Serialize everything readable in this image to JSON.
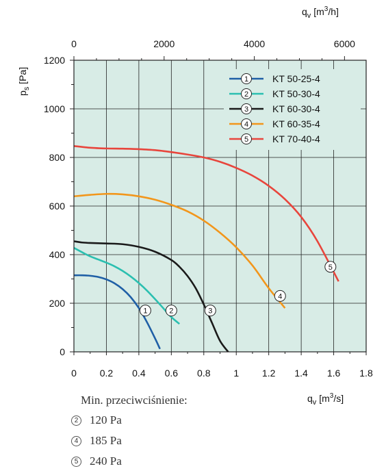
{
  "chart_data": {
    "type": "line",
    "xlabel_bottom": {
      "sym": "q",
      "sub": "v",
      "unit_pre": "[m",
      "sup": "3",
      "unit_post": "/s]"
    },
    "xlabel_top": {
      "sym": "q",
      "sub": "v",
      "unit_pre": "[m",
      "sup": "3",
      "unit_post": "/h]"
    },
    "ylabel": {
      "sym": "p",
      "sub": "s",
      "unit": "[Pa]"
    },
    "xlim": [
      0,
      1.8
    ],
    "ylim": [
      0,
      1200
    ],
    "x_ticks": [
      "0",
      "0.2",
      "0.4",
      "0.6",
      "0.8",
      "1",
      "1.2",
      "1.4",
      "1.6",
      "1.8"
    ],
    "y_ticks": [
      "0",
      "200",
      "400",
      "600",
      "800",
      "1000",
      "1200"
    ],
    "x2_ticks": [
      "0",
      "2000",
      "4000",
      "6000"
    ],
    "background": "#d8ece6",
    "legend_position": "top-right",
    "series": [
      {
        "marker": "1",
        "name": "KT 50-25-4",
        "color": "#1f5fa6",
        "x": [
          0,
          0.05,
          0.1,
          0.15,
          0.2,
          0.25,
          0.3,
          0.35,
          0.4,
          0.45,
          0.5,
          0.53
        ],
        "y": [
          315,
          315,
          313,
          308,
          298,
          282,
          258,
          225,
          180,
          122,
          55,
          12
        ],
        "marker_at": [
          0.44,
          170
        ]
      },
      {
        "marker": "2",
        "name": "KT 50-30-4",
        "color": "#2bbfb0",
        "x": [
          0,
          0.05,
          0.1,
          0.15,
          0.2,
          0.25,
          0.3,
          0.35,
          0.4,
          0.45,
          0.5,
          0.55,
          0.6,
          0.65
        ],
        "y": [
          428,
          410,
          393,
          380,
          367,
          352,
          333,
          310,
          283,
          252,
          217,
          180,
          143,
          115
        ],
        "marker_at": [
          0.6,
          170
        ]
      },
      {
        "marker": "3",
        "name": "KT 60-30-4",
        "color": "#1a1a1a",
        "x": [
          0,
          0.05,
          0.1,
          0.2,
          0.3,
          0.4,
          0.5,
          0.6,
          0.65,
          0.7,
          0.75,
          0.8,
          0.85,
          0.9,
          0.95
        ],
        "y": [
          455,
          450,
          448,
          446,
          443,
          432,
          412,
          378,
          350,
          312,
          262,
          195,
          120,
          45,
          0
        ],
        "marker_at": [
          0.84,
          170
        ]
      },
      {
        "marker": "4",
        "name": "KT 60-35-4",
        "color": "#f2961b",
        "x": [
          0,
          0.1,
          0.2,
          0.3,
          0.4,
          0.5,
          0.6,
          0.7,
          0.8,
          0.9,
          1.0,
          1.1,
          1.2,
          1.3
        ],
        "y": [
          640,
          646,
          650,
          648,
          640,
          626,
          605,
          578,
          540,
          490,
          430,
          355,
          262,
          180
        ],
        "marker_at": [
          1.27,
          230
        ]
      },
      {
        "marker": "5",
        "name": "KT 70-40-4",
        "color": "#e8453c",
        "x": [
          0,
          0.1,
          0.2,
          0.3,
          0.4,
          0.5,
          0.6,
          0.7,
          0.8,
          0.9,
          1.0,
          1.1,
          1.2,
          1.3,
          1.4,
          1.5,
          1.63
        ],
        "y": [
          847,
          840,
          837,
          836,
          834,
          830,
          822,
          812,
          800,
          782,
          757,
          725,
          683,
          628,
          555,
          455,
          290
        ],
        "marker_at": [
          1.58,
          350
        ]
      }
    ]
  },
  "notes": {
    "title": "Min. przeciwciśnienie:",
    "items": [
      {
        "marker": "2",
        "value": "120 Pa"
      },
      {
        "marker": "4",
        "value": "185 Pa"
      },
      {
        "marker": "5",
        "value": "240 Pa"
      }
    ]
  }
}
